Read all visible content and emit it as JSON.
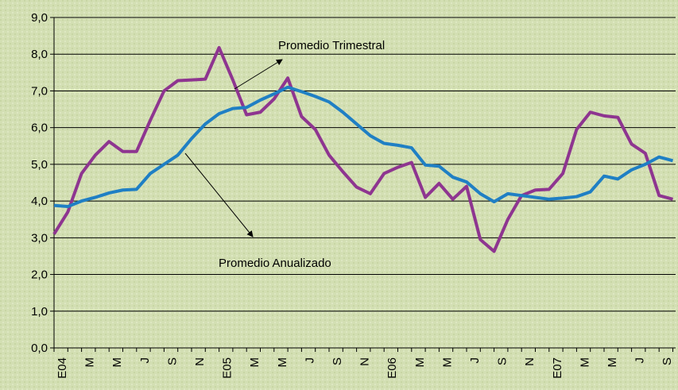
{
  "chart_data": {
    "type": "line",
    "categories": [
      "E04",
      null,
      "M",
      null,
      "M",
      null,
      "J",
      null,
      "S",
      null,
      "N",
      null,
      "E05",
      null,
      "M",
      null,
      "M",
      null,
      "J",
      null,
      "S",
      null,
      "N",
      null,
      "E06",
      null,
      "M",
      null,
      "M",
      null,
      "J",
      null,
      "S",
      null,
      "N",
      null,
      "E07",
      null,
      "M",
      null,
      "M",
      null,
      "J",
      null,
      "S",
      null
    ],
    "series": [
      {
        "name": "Promedio Trimestral",
        "color": "#8e3590",
        "values": [
          3.1,
          3.7,
          4.75,
          5.25,
          5.62,
          5.35,
          5.35,
          6.2,
          7.0,
          7.28,
          7.3,
          7.32,
          8.18,
          7.3,
          6.35,
          6.42,
          6.78,
          7.35,
          6.3,
          5.95,
          5.25,
          4.8,
          4.38,
          4.2,
          4.75,
          4.92,
          5.05,
          4.1,
          4.48,
          4.05,
          4.4,
          2.95,
          2.63,
          3.5,
          4.15,
          4.3,
          4.32,
          4.75,
          5.95,
          6.42,
          6.32,
          6.28,
          5.55,
          5.3,
          4.15,
          4.05
        ]
      },
      {
        "name": "Promedio Anualizado",
        "color": "#1f7fc4",
        "values": [
          3.88,
          3.85,
          4.0,
          4.1,
          4.22,
          4.3,
          4.32,
          4.75,
          5.0,
          5.25,
          5.7,
          6.1,
          6.38,
          6.52,
          6.55,
          6.75,
          6.92,
          7.1,
          6.98,
          6.85,
          6.7,
          6.42,
          6.1,
          5.78,
          5.57,
          5.52,
          5.45,
          4.98,
          4.95,
          4.65,
          4.52,
          4.2,
          3.98,
          4.2,
          4.15,
          4.1,
          4.05,
          4.08,
          4.12,
          4.25,
          4.68,
          4.6,
          4.85,
          5.0,
          5.2,
          5.1
        ]
      }
    ],
    "ylim": [
      0,
      9
    ],
    "yticks": [
      {
        "value": 0,
        "label": "0,0"
      },
      {
        "value": 1,
        "label": "1,0"
      },
      {
        "value": 2,
        "label": "2,0"
      },
      {
        "value": 3,
        "label": "3,0"
      },
      {
        "value": 4,
        "label": "4,0"
      },
      {
        "value": 5,
        "label": "5,0"
      },
      {
        "value": 6,
        "label": "6,0"
      },
      {
        "value": 7,
        "label": "7,0"
      },
      {
        "value": 8,
        "label": "8,0"
      },
      {
        "value": 9,
        "label": "9,0"
      }
    ],
    "grid": true
  }
}
